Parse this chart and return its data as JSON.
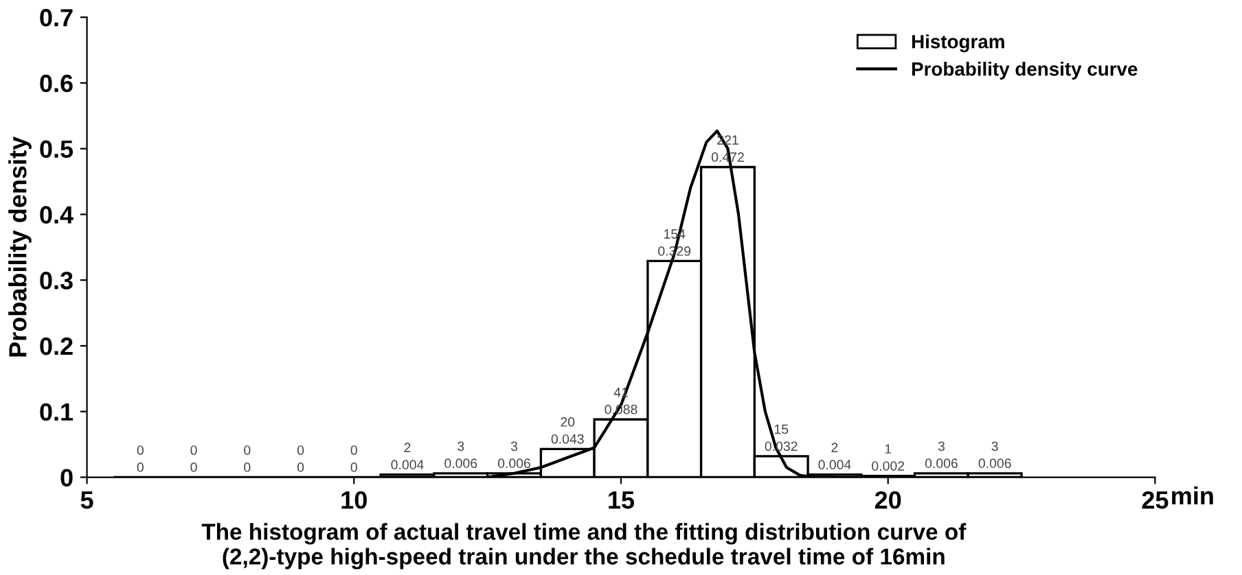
{
  "chart_data": {
    "type": "histogram",
    "title": "The histogram of actual travel time and the fitting distribution curve of\n(2,2)-type high-speed train under the schedule travel time of 16min",
    "ylabel": "Probability density",
    "xlabel": "min",
    "series": [
      {
        "name": "Histogram",
        "color": "#ffffff",
        "bins": [
          5.5,
          6.5,
          7.5,
          8.5,
          9.5,
          10.5,
          11.5,
          12.5,
          13.5,
          14.5,
          15.5,
          16.5,
          17.5,
          18.5,
          19.5,
          20.5,
          21.5,
          22.5
        ],
        "values": [
          0,
          0,
          0,
          0,
          0,
          0.004,
          0.006,
          0.006,
          0.043,
          0.088,
          0.329,
          0.472,
          0.032,
          0.004,
          0.002,
          0.006,
          0.006
        ],
        "data_labels": true
      },
      {
        "name": "Probability density curve",
        "type": "line",
        "color": "#000000",
        "x": [
          12.5,
          13.0,
          13.5,
          13.7,
          14.0,
          14.5,
          15.0,
          15.5,
          16.0,
          16.3,
          16.6,
          16.8,
          17.0,
          17.2,
          17.5,
          17.7,
          17.9,
          18.1,
          18.35,
          18.6,
          19.0
        ],
        "values": [
          0.0,
          0.006,
          0.015,
          0.021,
          0.03,
          0.045,
          0.11,
          0.22,
          0.34,
          0.44,
          0.51,
          0.527,
          0.5,
          0.4,
          0.19,
          0.1,
          0.045,
          0.015,
          0.003,
          0.0,
          0.0
        ]
      }
    ],
    "annotations": [
      {
        "text": "0",
        "x": 6,
        "y": 0
      },
      {
        "text": "0",
        "x": 7,
        "y": 0
      },
      {
        "text": "0",
        "x": 8,
        "y": 0
      },
      {
        "text": "0",
        "x": 9,
        "y": 0
      },
      {
        "text": "0",
        "x": 10,
        "y": 0
      },
      {
        "text": "2",
        "x": 11,
        "y": 0.004
      },
      {
        "text": "3",
        "x": 12,
        "y": 0.006
      },
      {
        "text": "3",
        "x": 13,
        "y": 0.006
      },
      {
        "text": "20",
        "x": 14,
        "y": 0.043
      },
      {
        "text": "41",
        "x": 15,
        "y": 0.088
      },
      {
        "text": "154",
        "x": 16,
        "y": 0.329
      },
      {
        "text": "221",
        "x": 17,
        "y": 0.472
      },
      {
        "text": "15",
        "x": 18,
        "y": 0.032
      },
      {
        "text": "2",
        "x": 19,
        "y": 0.004
      },
      {
        "text": "1",
        "x": 20,
        "y": 0.002
      },
      {
        "text": "3",
        "x": 21,
        "y": 0.006
      },
      {
        "text": "3",
        "x": 22,
        "y": 0.006
      }
    ],
    "xlim": [
      5,
      25
    ],
    "xticks": [
      5,
      10,
      15,
      20,
      25
    ],
    "ylim": [
      0,
      0.7
    ],
    "yticks": [
      0,
      0.1,
      0.2,
      0.3,
      0.4,
      0.5,
      0.6,
      0.7
    ],
    "legend": "top right",
    "grid": false
  }
}
